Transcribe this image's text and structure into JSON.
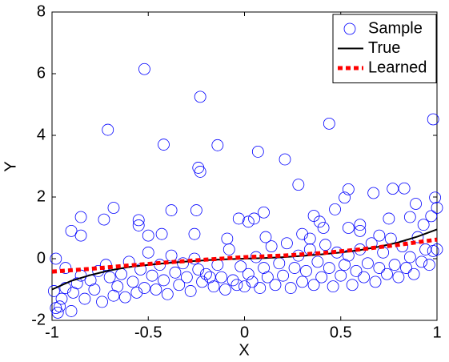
{
  "chart_data": {
    "type": "scatter",
    "xlabel": "X",
    "ylabel": "Y",
    "xlim": [
      -1,
      1
    ],
    "xticks": [
      -1,
      -0.5,
      0,
      0.5,
      1
    ],
    "ylim": [
      -2,
      8
    ],
    "yticks": [
      -2,
      0,
      2,
      4,
      6,
      8
    ],
    "legend": "upper right",
    "series": [
      {
        "name": "Sample",
        "color": "#0000ff",
        "style": "marker",
        "x": [
          -0.52,
          -0.23,
          -0.71,
          -0.42,
          -0.14,
          0.44,
          0.98,
          0.07,
          0.21,
          -0.24,
          -0.23,
          0.28,
          0.77,
          0.83,
          0.54,
          0.52,
          0.67,
          0.99,
          0.89,
          1.0,
          0.97,
          -0.68,
          -0.85,
          -0.73,
          -0.55,
          -0.55,
          -0.38,
          -0.25,
          -0.03,
          0.02,
          0.05,
          0.1,
          0.36,
          0.39,
          0.41,
          0.47,
          0.54,
          0.6,
          0.75,
          0.86,
          0.93,
          -0.9,
          -0.85,
          -0.5,
          -0.43,
          -0.26,
          -0.09,
          0.11,
          0.3,
          0.34,
          0.6,
          0.7,
          -0.98,
          -0.93,
          -0.99,
          -0.98,
          -0.97,
          -0.96,
          -0.95,
          -0.93,
          -0.9,
          -0.89,
          -0.87,
          -0.85,
          -0.83,
          -0.8,
          -0.78,
          -0.76,
          -0.74,
          -0.72,
          -0.7,
          -0.68,
          -0.66,
          -0.64,
          -0.62,
          -0.6,
          -0.58,
          -0.56,
          -0.54,
          -0.52,
          -0.5,
          -0.48,
          -0.46,
          -0.44,
          -0.42,
          -0.4,
          -0.38,
          -0.36,
          -0.34,
          -0.32,
          -0.3,
          -0.28,
          -0.26,
          -0.24,
          -0.22,
          -0.2,
          -0.18,
          -0.16,
          -0.14,
          -0.12,
          -0.1,
          -0.08,
          -0.06,
          -0.04,
          -0.02,
          0.0,
          0.02,
          0.04,
          0.06,
          0.08,
          0.1,
          0.12,
          0.14,
          0.16,
          0.18,
          0.2,
          0.22,
          0.24,
          0.26,
          0.28,
          0.3,
          0.32,
          0.34,
          0.36,
          0.38,
          0.4,
          0.42,
          0.44,
          0.46,
          0.48,
          0.5,
          0.52,
          0.54,
          0.56,
          0.58,
          0.6,
          0.62,
          0.64,
          0.66,
          0.68,
          0.7,
          0.72,
          0.74,
          0.76,
          0.78,
          0.8,
          0.82,
          0.84,
          0.86,
          0.88,
          0.9,
          0.92,
          0.94,
          0.96,
          0.98,
          1.0
        ],
        "y": [
          6.15,
          5.25,
          4.18,
          3.7,
          3.68,
          4.38,
          4.52,
          3.47,
          3.22,
          2.95,
          2.82,
          2.4,
          2.27,
          2.28,
          2.25,
          1.98,
          2.13,
          1.98,
          1.78,
          1.65,
          1.38,
          1.65,
          1.35,
          1.27,
          1.25,
          1.08,
          1.57,
          1.57,
          1.3,
          1.2,
          1.3,
          1.5,
          1.39,
          1.2,
          1.0,
          1.6,
          1.0,
          1.1,
          1.3,
          1.35,
          1.1,
          0.9,
          0.75,
          0.75,
          0.8,
          0.8,
          0.65,
          0.7,
          0.8,
          0.65,
          0.9,
          0.75,
          0.0,
          -0.3,
          -1.05,
          -1.6,
          -1.75,
          -1.55,
          -1.3,
          -0.95,
          -1.7,
          -1.1,
          -0.8,
          -0.55,
          -1.3,
          -0.7,
          -1.0,
          -0.4,
          -1.4,
          -0.2,
          -0.6,
          -1.2,
          -0.9,
          -0.5,
          -1.25,
          -0.1,
          -0.75,
          -1.1,
          -0.35,
          -0.95,
          0.2,
          -0.55,
          -1.0,
          -0.2,
          -0.7,
          -1.15,
          0.1,
          -0.45,
          -0.85,
          -0.15,
          -0.6,
          -1.05,
          0.0,
          -0.35,
          -0.75,
          -0.5,
          -0.6,
          -0.9,
          -0.2,
          -0.6,
          -1.0,
          0.3,
          -0.7,
          -0.85,
          -0.25,
          -0.9,
          -0.5,
          -0.75,
          0.05,
          -0.95,
          -0.3,
          -0.6,
          0.4,
          -0.85,
          -0.15,
          -0.55,
          0.5,
          -0.95,
          -0.3,
          0.1,
          -0.75,
          -0.4,
          0.3,
          -0.85,
          -0.1,
          -0.6,
          0.45,
          -0.3,
          -0.9,
          0.2,
          -0.55,
          -0.2,
          0.1,
          -0.85,
          -0.4,
          0.3,
          -0.6,
          -0.15,
          0.5,
          -0.75,
          -0.3,
          0.2,
          -0.5,
          0.65,
          -0.2,
          -0.6,
          0.4,
          -0.3,
          0.05,
          -0.5,
          0.7,
          -0.1,
          0.3,
          -0.2,
          0.25,
          0.3
        ]
      },
      {
        "name": "True",
        "color": "#000000",
        "style": "solid",
        "x": [
          -1,
          -0.9,
          -0.8,
          -0.7,
          -0.6,
          -0.5,
          -0.4,
          -0.3,
          -0.2,
          -0.1,
          0,
          0.1,
          0.2,
          0.3,
          0.4,
          0.5,
          0.6,
          0.7,
          0.8,
          0.9,
          1
        ],
        "y": [
          -1.0,
          -0.72,
          -0.53,
          -0.38,
          -0.27,
          -0.2,
          -0.14,
          -0.09,
          -0.05,
          -0.02,
          0.0,
          0.02,
          0.05,
          0.09,
          0.14,
          0.2,
          0.28,
          0.39,
          0.53,
          0.72,
          0.95
        ]
      },
      {
        "name": "Learned",
        "color": "#ff0000",
        "style": "dashed",
        "x": [
          -1,
          -0.8,
          -0.6,
          -0.4,
          -0.2,
          0,
          0.2,
          0.4,
          0.6,
          0.8,
          1
        ],
        "y": [
          -0.42,
          -0.33,
          -0.22,
          -0.12,
          -0.03,
          0.05,
          0.1,
          0.18,
          0.3,
          0.45,
          0.62
        ]
      }
    ]
  }
}
